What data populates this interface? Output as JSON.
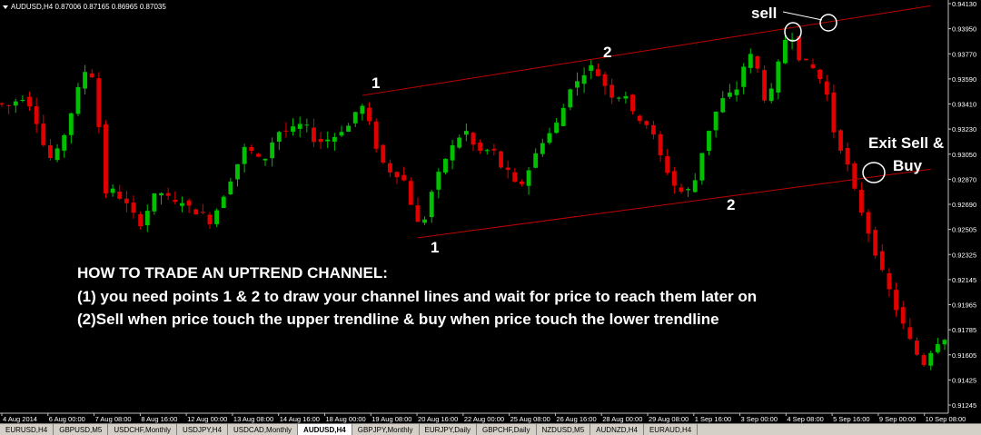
{
  "symbol_header": {
    "arrow_icon": "triangle-down-icon",
    "text": "AUDUSD,H4  0.87006 0.87165 0.86965 0.87035"
  },
  "price_axis": [
    "0.94130",
    "0.93950",
    "0.93770",
    "0.93590",
    "0.93410",
    "0.93230",
    "0.93050",
    "0.92870",
    "0.92690",
    "0.92505",
    "0.92325",
    "0.92145",
    "0.91965",
    "0.91785",
    "0.91605",
    "0.91425",
    "0.91245"
  ],
  "time_axis": [
    "4 Aug 2014",
    "6 Aug 00:00",
    "7 Aug 08:00",
    "8 Aug 16:00",
    "12 Aug 00:00",
    "13 Aug 08:00",
    "14 Aug 16:00",
    "18 Aug 00:00",
    "19 Aug 08:00",
    "20 Aug 16:00",
    "22 Aug 00:00",
    "25 Aug 08:00",
    "26 Aug 16:00",
    "28 Aug 00:00",
    "29 Aug 08:00",
    "1 Sep 16:00",
    "3 Sep 00:00",
    "4 Sep 08:00",
    "5 Sep 16:00",
    "9 Sep 00:00",
    "10 Sep 08:00"
  ],
  "annotations": {
    "point_1_upper": "1",
    "point_1_lower": "1",
    "point_2_upper": "2",
    "point_2_lower": "2",
    "sell": "sell",
    "exit_line1": "Exit Sell &",
    "exit_line2": "Buy"
  },
  "instructions": {
    "line1": "HOW TO TRADE AN UPTREND CHANNEL:",
    "line2": "(1) you need points 1 & 2 to draw your channel lines and wait for price to reach them later on",
    "line3": "(2)Sell when price touch the upper trendline & buy when price touch the lower trendline"
  },
  "tabs": [
    {
      "label": "EURUSD,H4",
      "active": false
    },
    {
      "label": "GBPUSD,M5",
      "active": false
    },
    {
      "label": "USDCHF,Monthly",
      "active": false
    },
    {
      "label": "USDJPY,H4",
      "active": false
    },
    {
      "label": "USDCAD,Monthly",
      "active": false
    },
    {
      "label": "AUDUSD,H4",
      "active": true
    },
    {
      "label": "GBPJPY,Monthly",
      "active": false
    },
    {
      "label": "EURJPY,Daily",
      "active": false
    },
    {
      "label": "GBPCHF,Daily",
      "active": false
    },
    {
      "label": "NZDUSD,M5",
      "active": false
    },
    {
      "label": "AUDNZD,H4",
      "active": false
    },
    {
      "label": "EURAUD,H4",
      "active": false
    }
  ],
  "colors": {
    "background": "#000000",
    "bull": "#00c000",
    "bear": "#e00000",
    "channel": "#c00000",
    "axis_text": "#ffffff",
    "annotation": "#ffffff"
  },
  "chart_data": {
    "type": "candlestick",
    "symbol": "AUDUSD",
    "timeframe": "H4",
    "y_range": [
      0.9105,
      0.9415
    ],
    "x_index_range": [
      0,
      136
    ],
    "channel": {
      "upper": {
        "from": {
          "i": 52,
          "price": 0.9344
        },
        "to": {
          "i": 134,
          "price": 0.9412
        }
      },
      "lower": {
        "from": {
          "i": 60,
          "price": 0.9236
        },
        "to": {
          "i": 134,
          "price": 0.9288
        }
      }
    },
    "candles": []
  }
}
